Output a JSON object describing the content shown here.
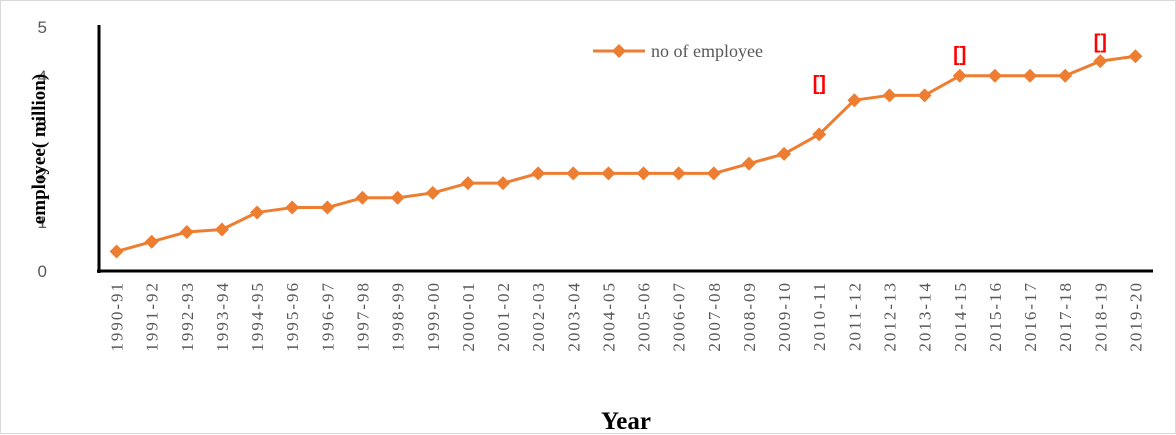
{
  "chart_data": {
    "type": "line",
    "categories": [
      "1990-91",
      "1991-92",
      "1992-93",
      "1993-94",
      "1994-95",
      "1995-96",
      "1996-97",
      "1997-98",
      "1998-99",
      "1999-00",
      "2000-01",
      "2001-02",
      "2002-03",
      "2003-04",
      "2004-05",
      "2005-06",
      "2006-07",
      "2007-08",
      "2008-09",
      "2009-10",
      "2010-11",
      "2011-12",
      "2012-13",
      "2013-14",
      "2014-15",
      "2015-16",
      "2016-17",
      "2017-18",
      "2018-19",
      "2019-20"
    ],
    "series": [
      {
        "name": "no of employee",
        "color": "#ed7d31",
        "marker": "diamond",
        "values": [
          0.4,
          0.6,
          0.8,
          0.85,
          1.2,
          1.3,
          1.3,
          1.5,
          1.5,
          1.6,
          1.8,
          1.8,
          2.0,
          2.0,
          2.0,
          2.0,
          2.0,
          2.0,
          2.2,
          2.4,
          2.8,
          3.5,
          3.6,
          3.6,
          4.0,
          4.0,
          4.0,
          4.0,
          4.3,
          4.4
        ]
      }
    ],
    "xlabel": "Year",
    "ylabel": "employee( million)",
    "ylim": [
      0,
      5
    ],
    "yticks": [
      "0",
      "1",
      "2",
      "3",
      "4",
      "5"
    ],
    "grid": false,
    "legend_position": "top-center",
    "annotations": [
      {
        "text": "[]",
        "category": "2010-11",
        "y": 3.85,
        "color": "#ff0000"
      },
      {
        "text": "[]",
        "category": "2014-15",
        "y": 4.45,
        "color": "#ff0000"
      },
      {
        "text": "[]",
        "category": "2018-19",
        "y": 4.7,
        "color": "#ff0000"
      }
    ]
  }
}
